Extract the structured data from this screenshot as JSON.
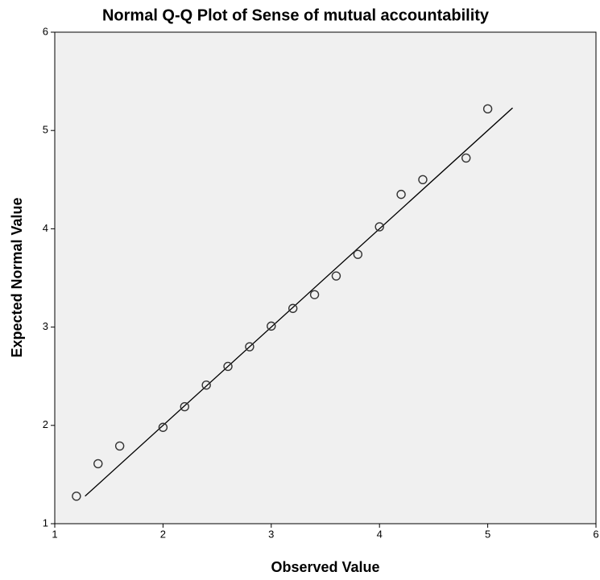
{
  "chart_data": {
    "type": "scatter",
    "title": "Normal Q-Q Plot of Sense of mutual accountability",
    "x_label": "Observed Value",
    "y_label": "Expected Normal Value",
    "x": [
      1.2,
      1.4,
      1.6,
      2.0,
      2.2,
      2.4,
      2.6,
      2.8,
      3.0,
      3.2,
      3.4,
      3.6,
      3.8,
      4.0,
      4.2,
      4.4,
      4.8,
      5.0
    ],
    "series": [
      {
        "values": [
          1.28,
          1.61,
          1.79,
          1.98,
          2.19,
          2.41,
          2.6,
          2.8,
          3.01,
          3.19,
          3.33,
          3.52,
          3.74,
          4.02,
          4.35,
          4.5,
          4.72,
          5.22
        ],
        "color": "#333333"
      }
    ],
    "reference_line": {
      "x": [
        1.28,
        5.23
      ],
      "y": [
        1.28,
        5.23
      ],
      "color": "#000000"
    },
    "xlim": [
      1,
      6
    ],
    "ylim": [
      1,
      6
    ],
    "xticks": [
      1,
      2,
      3,
      4,
      5,
      6
    ],
    "yticks": [
      1,
      2,
      3,
      4,
      5,
      6
    ],
    "background": "#f0f0f0",
    "grid": false
  }
}
